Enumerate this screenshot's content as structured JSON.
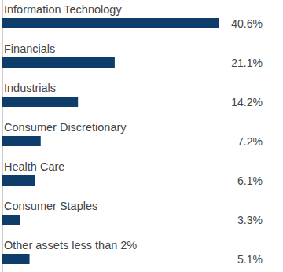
{
  "chart_data": {
    "type": "bar",
    "orientation": "horizontal",
    "categories": [
      "Information Technology",
      "Financials",
      "Industrials",
      "Consumer Discretionary",
      "Health Care",
      "Consumer Staples",
      "Other assets less than 2%"
    ],
    "values": [
      40.6,
      21.1,
      14.2,
      7.2,
      6.1,
      3.3,
      5.1
    ],
    "value_labels": [
      "40.6%",
      "21.1%",
      "14.2%",
      "7.2%",
      "6.1%",
      "3.3%",
      "5.1%"
    ],
    "color": "#0f3d6b",
    "xlim": [
      0,
      40.6
    ],
    "tick_labels": false,
    "data_labels": true
  }
}
